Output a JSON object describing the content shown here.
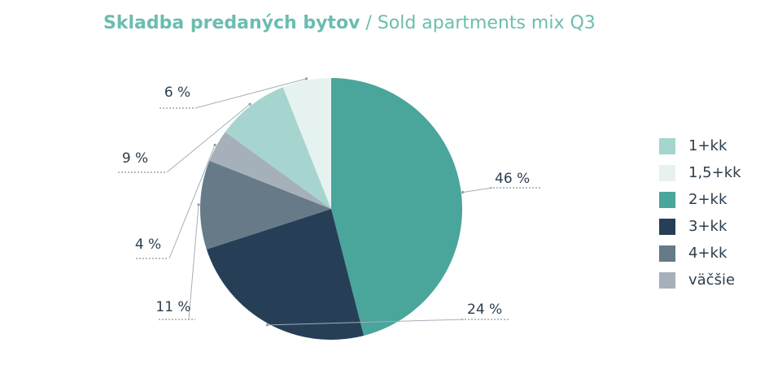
{
  "title": {
    "main": "Skladba predaných bytov",
    "sub": "/ Sold apartments mix Q3"
  },
  "chart_data": {
    "type": "pie",
    "start": "top",
    "direction": "clockwise",
    "legend_position": "right",
    "slices": [
      {
        "label": "2+kk",
        "value": 46,
        "display": "46 %",
        "color": "#4aa59b"
      },
      {
        "label": "3+kk",
        "value": 24,
        "display": "24 %",
        "color": "#263f57"
      },
      {
        "label": "4+kk",
        "value": 11,
        "display": "11 %",
        "color": "#667a88"
      },
      {
        "label": "väčšie",
        "value": 4,
        "display": "4 %",
        "color": "#a5b0ba"
      },
      {
        "label": "1+kk",
        "value": 9,
        "display": "9 %",
        "color": "#a6d5cf"
      },
      {
        "label": "1,5+kk",
        "value": 6,
        "display": "6 %",
        "color": "#e6f2f0"
      }
    ],
    "legend": [
      {
        "label": "1+kk",
        "color": "#a6d5cf"
      },
      {
        "label": "1,5+kk",
        "color": "#e6f2f0"
      },
      {
        "label": "2+kk",
        "color": "#4aa59b"
      },
      {
        "label": "3+kk",
        "color": "#263f57"
      },
      {
        "label": "4+kk",
        "color": "#667a88"
      },
      {
        "label": "väčšie",
        "color": "#a5b0ba"
      }
    ]
  }
}
